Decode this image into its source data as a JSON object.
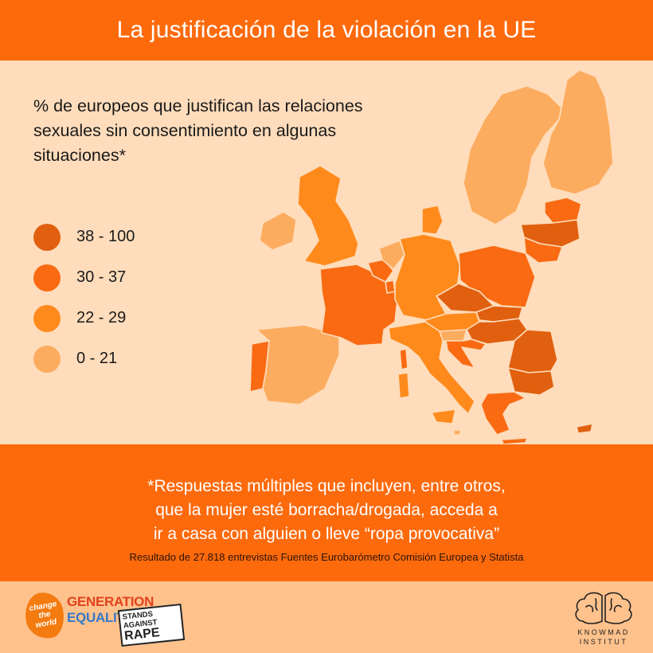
{
  "header": {
    "title": "La justificación de la violación en la UE"
  },
  "subtitle": "% de europeos que justifican las relaciones sexuales sin consentimiento en algunas situaciones*",
  "legend": [
    {
      "label": "38 - 100",
      "color": "#e0600f"
    },
    {
      "label": "30 - 37",
      "color": "#f96a12"
    },
    {
      "label": "22 - 29",
      "color": "#ff8a1c"
    },
    {
      "label": "0 - 21",
      "color": "#fcac5e"
    }
  ],
  "map": {
    "countries": [
      {
        "name": "Portugal",
        "band": "30 - 37"
      },
      {
        "name": "Spain",
        "band": "0 - 21"
      },
      {
        "name": "France",
        "band": "30 - 37"
      },
      {
        "name": "Belgium",
        "band": "30 - 37"
      },
      {
        "name": "Netherlands",
        "band": "0 - 21"
      },
      {
        "name": "Luxembourg",
        "band": "30 - 37"
      },
      {
        "name": "Germany",
        "band": "22 - 29"
      },
      {
        "name": "Denmark",
        "band": "22 - 29"
      },
      {
        "name": "United Kingdom",
        "band": "22 - 29"
      },
      {
        "name": "Ireland",
        "band": "0 - 21"
      },
      {
        "name": "Italy",
        "band": "22 - 29"
      },
      {
        "name": "Austria",
        "band": "22 - 29"
      },
      {
        "name": "Czechia",
        "band": "38 - 100"
      },
      {
        "name": "Poland",
        "band": "30 - 37"
      },
      {
        "name": "Slovakia",
        "band": "38 - 100"
      },
      {
        "name": "Hungary",
        "band": "38 - 100"
      },
      {
        "name": "Slovenia",
        "band": "0 - 21"
      },
      {
        "name": "Croatia",
        "band": "30 - 37"
      },
      {
        "name": "Romania",
        "band": "38 - 100"
      },
      {
        "name": "Bulgaria",
        "band": "38 - 100"
      },
      {
        "name": "Greece",
        "band": "30 - 37"
      },
      {
        "name": "Sweden",
        "band": "0 - 21"
      },
      {
        "name": "Finland",
        "band": "0 - 21"
      },
      {
        "name": "Estonia",
        "band": "30 - 37"
      },
      {
        "name": "Latvia",
        "band": "38 - 100"
      },
      {
        "name": "Lithuania",
        "band": "30 - 37"
      },
      {
        "name": "Cyprus",
        "band": "38 - 100"
      },
      {
        "name": "Malta",
        "band": "0 - 21"
      }
    ]
  },
  "footer": {
    "note_lines": [
      "*Respuestas múltiples que incluyen, entre otros,",
      "que la mujer esté borracha/drogada, acceda a",
      "ir a casa con alguien o lleve “ropa provocativa”"
    ],
    "source": "Resultado de 27.818 entrevistas Fuentes Eurobarómetro Comisión Europea y Statista"
  },
  "logos": {
    "splash": "change the world",
    "generation": "GENERATION",
    "equality": "EQUALITY",
    "stamp": [
      "STANDS",
      "AGAINST",
      "RAPE"
    ],
    "knowmad_line1": "KNOWMAD",
    "knowmad_line2": "INSTITUT"
  }
}
